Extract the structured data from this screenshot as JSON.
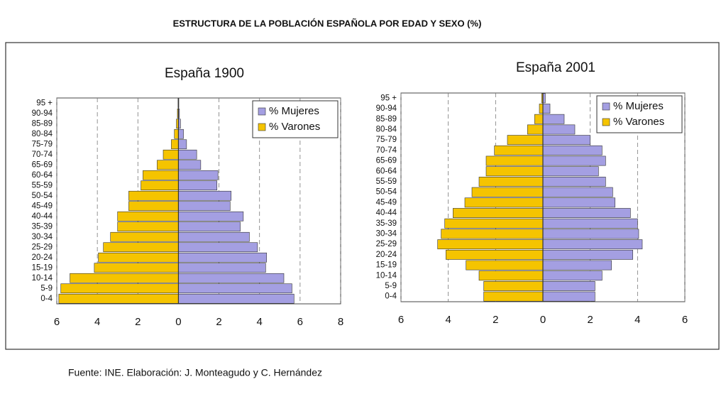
{
  "title": "ESTRUCTURA DE LA POBLACIÓN ESPAÑOLA POR EDAD Y SEXO (%)",
  "source": "Fuente: INE. Elaboración: J. Monteagudo y C. Hernández",
  "chart_data": [
    {
      "type": "pyramid",
      "title": "España 1900",
      "categories": [
        "0-4",
        "5-9",
        "10-14",
        "15-19",
        "20-24",
        "25-29",
        "30-34",
        "35-39",
        "40-44",
        "45-49",
        "50-54",
        "55-59",
        "60-64",
        "65-69",
        "70-74",
        "75-79",
        "80-84",
        "85-89",
        "90-94",
        "95 +"
      ],
      "series": [
        {
          "name": "% Mujeres",
          "color": "#a49fe2",
          "values": [
            5.7,
            5.6,
            5.2,
            4.3,
            4.35,
            3.9,
            3.5,
            3.05,
            3.2,
            2.55,
            2.6,
            1.9,
            1.95,
            1.1,
            0.9,
            0.4,
            0.25,
            0.1,
            0.05,
            0.02
          ]
        },
        {
          "name": "% Varones",
          "color": "#f5c400",
          "values": [
            -5.9,
            -5.8,
            -5.35,
            -4.15,
            -3.95,
            -3.7,
            -3.35,
            -3.0,
            -3.0,
            -2.45,
            -2.45,
            -1.85,
            -1.75,
            -1.05,
            -0.75,
            -0.35,
            -0.2,
            -0.1,
            -0.05,
            -0.02
          ]
        }
      ],
      "xlim": [
        -6,
        8
      ],
      "xticks": [
        {
          "value": -6,
          "label": "6"
        },
        {
          "value": -4,
          "label": "4"
        },
        {
          "value": -2,
          "label": "2"
        },
        0,
        2,
        4,
        6,
        8
      ],
      "grid": true,
      "legend": "top-right"
    },
    {
      "type": "pyramid",
      "title": "España 2001",
      "categories": [
        "0-4",
        "5-9",
        "10-14",
        "15-19",
        "20-24",
        "25-29",
        "30-34",
        "35-39",
        "40-44",
        "45-49",
        "50-54",
        "55-59",
        "60-64",
        "65-69",
        "70-74",
        "75-79",
        "80-84",
        "85-89",
        "90-94",
        "95 +"
      ],
      "series": [
        {
          "name": "% Mujeres",
          "color": "#a49fe2",
          "values": [
            2.2,
            2.2,
            2.5,
            2.9,
            3.8,
            4.2,
            4.05,
            4.0,
            3.7,
            3.05,
            2.95,
            2.65,
            2.35,
            2.65,
            2.5,
            2.0,
            1.35,
            0.9,
            0.3,
            0.1
          ]
        },
        {
          "name": "% Varones",
          "color": "#f5c400",
          "values": [
            -2.5,
            -2.5,
            -2.7,
            -3.25,
            -4.1,
            -4.45,
            -4.3,
            -4.15,
            -3.8,
            -3.3,
            -3.0,
            -2.7,
            -2.4,
            -2.4,
            -2.05,
            -1.5,
            -0.65,
            -0.35,
            -0.15,
            -0.05
          ]
        }
      ],
      "xlim": [
        -6,
        6
      ],
      "xticks": [
        {
          "value": -6,
          "label": "6"
        },
        {
          "value": -4,
          "label": "4"
        },
        {
          "value": -2,
          "label": "2"
        },
        0,
        2,
        4,
        6
      ],
      "grid": true,
      "legend": "top-right"
    }
  ]
}
